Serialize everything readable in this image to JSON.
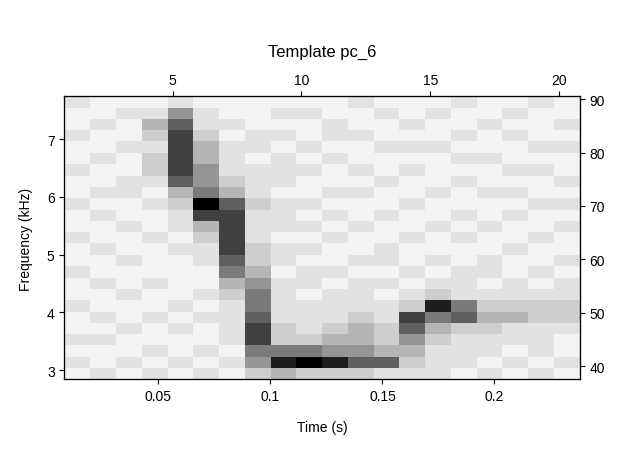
{
  "chart_data": {
    "type": "heatmap",
    "title": "Template pc_6",
    "x_label": "Time (s)",
    "y_label": "Frequency (kHz)",
    "x": [
      0.0138,
      0.0253,
      0.0368,
      0.0483,
      0.0598,
      0.0713,
      0.0828,
      0.0943,
      0.1058,
      0.1173,
      0.1288,
      0.1403,
      0.1518,
      0.1633,
      0.1748,
      0.1863,
      0.1978,
      0.2093,
      0.2208,
      0.2323
    ],
    "y": [
      2.94,
      3.13,
      3.33,
      3.53,
      3.72,
      3.92,
      4.11,
      4.31,
      4.51,
      4.7,
      4.9,
      5.1,
      5.29,
      5.49,
      5.68,
      5.88,
      6.08,
      6.27,
      6.47,
      6.66,
      6.86,
      7.06,
      7.25,
      7.45,
      7.64
    ],
    "z_by_x": [
      [
        1,
        2,
        1,
        2,
        1,
        1,
        2,
        1,
        1,
        2,
        1,
        1,
        2,
        1,
        1,
        2,
        1,
        1,
        2,
        1,
        1,
        2,
        1,
        1,
        2
      ],
      [
        2,
        1,
        1,
        2,
        1,
        2,
        1,
        1,
        2,
        1,
        1,
        2,
        1,
        1,
        2,
        1,
        2,
        1,
        1,
        2,
        1,
        1,
        2,
        1,
        1
      ],
      [
        1,
        2,
        1,
        1,
        2,
        1,
        1,
        2,
        1,
        1,
        2,
        1,
        1,
        2,
        1,
        1,
        2,
        2,
        1,
        1,
        2,
        1,
        1,
        2,
        1
      ],
      [
        2,
        1,
        2,
        1,
        1,
        2,
        1,
        1,
        2,
        1,
        1,
        1,
        2,
        1,
        1,
        2,
        1,
        2,
        3,
        3,
        2,
        3,
        4,
        2,
        1
      ],
      [
        1,
        2,
        1,
        1,
        2,
        1,
        2,
        1,
        1,
        1,
        1,
        2,
        1,
        2,
        2,
        3,
        4,
        7,
        8,
        8,
        8,
        8,
        7,
        5,
        2
      ],
      [
        2,
        1,
        2,
        1,
        1,
        2,
        1,
        2,
        1,
        1,
        2,
        2,
        3,
        4,
        8,
        10,
        6,
        5,
        5,
        4,
        4,
        3,
        2,
        2,
        1
      ],
      [
        1,
        2,
        1,
        2,
        2,
        2,
        2,
        3,
        4,
        6,
        7,
        8,
        8,
        8,
        8,
        7,
        4,
        3,
        2,
        2,
        2,
        1,
        2,
        1,
        1
      ],
      [
        3,
        5,
        6,
        8,
        8,
        7,
        6,
        6,
        5,
        4,
        3,
        3,
        2,
        2,
        2,
        3,
        2,
        2,
        2,
        1,
        2,
        2,
        1,
        1,
        1
      ],
      [
        4,
        9,
        6,
        3,
        3,
        2,
        2,
        2,
        2,
        1,
        2,
        2,
        1,
        2,
        2,
        2,
        1,
        2,
        2,
        2,
        1,
        2,
        1,
        2,
        1
      ],
      [
        3,
        10,
        6,
        3,
        2,
        2,
        2,
        1,
        2,
        2,
        1,
        2,
        1,
        2,
        1,
        2,
        1,
        1,
        2,
        1,
        2,
        1,
        1,
        2,
        1
      ],
      [
        3,
        9,
        5,
        4,
        3,
        2,
        2,
        2,
        1,
        2,
        1,
        1,
        2,
        1,
        2,
        1,
        2,
        1,
        1,
        2,
        1,
        2,
        2,
        1,
        1
      ],
      [
        3,
        7,
        5,
        4,
        4,
        3,
        2,
        2,
        2,
        1,
        2,
        1,
        1,
        2,
        1,
        1,
        2,
        1,
        2,
        1,
        1,
        2,
        1,
        1,
        2
      ],
      [
        2,
        7,
        4,
        3,
        3,
        2,
        2,
        1,
        2,
        1,
        2,
        2,
        1,
        1,
        2,
        1,
        1,
        2,
        1,
        1,
        2,
        1,
        1,
        2,
        1
      ],
      [
        2,
        3,
        4,
        5,
        7,
        8,
        3,
        2,
        1,
        2,
        1,
        1,
        2,
        1,
        1,
        2,
        1,
        1,
        2,
        1,
        2,
        1,
        2,
        1,
        1
      ],
      [
        2,
        2,
        2,
        3,
        4,
        6,
        9,
        3,
        2,
        1,
        2,
        1,
        1,
        2,
        1,
        1,
        2,
        1,
        1,
        1,
        2,
        1,
        1,
        2,
        1
      ],
      [
        1,
        2,
        2,
        2,
        3,
        7,
        6,
        2,
        2,
        2,
        1,
        1,
        2,
        1,
        2,
        1,
        1,
        2,
        1,
        2,
        1,
        2,
        1,
        1,
        2
      ],
      [
        2,
        1,
        2,
        2,
        3,
        4,
        3,
        2,
        1,
        2,
        2,
        1,
        1,
        2,
        1,
        1,
        2,
        1,
        1,
        2,
        1,
        1,
        2,
        1,
        1
      ],
      [
        1,
        2,
        1,
        2,
        2,
        4,
        3,
        2,
        2,
        1,
        1,
        2,
        1,
        1,
        2,
        1,
        2,
        1,
        2,
        1,
        1,
        2,
        1,
        2,
        1
      ],
      [
        2,
        1,
        2,
        2,
        2,
        3,
        3,
        2,
        1,
        2,
        1,
        1,
        2,
        1,
        1,
        2,
        1,
        1,
        2,
        1,
        2,
        1,
        1,
        1,
        2
      ],
      [
        1,
        2,
        1,
        1,
        2,
        3,
        3,
        2,
        2,
        1,
        2,
        1,
        1,
        2,
        1,
        2,
        1,
        2,
        1,
        1,
        2,
        1,
        2,
        1,
        1
      ]
    ],
    "zlim": [
      0,
      10
    ],
    "xlim": [
      0.008,
      0.238
    ],
    "xticks": [
      0.05,
      0.1,
      0.15,
      0.2
    ],
    "ylim": [
      2.84,
      7.74
    ],
    "yticks": [
      3,
      4,
      5,
      6,
      7
    ],
    "x2lim": [
      0.8,
      20.8
    ],
    "x2ticks": [
      5,
      10,
      15,
      20
    ],
    "y2lim": [
      37.5,
      90.5
    ],
    "y2ticks": [
      40,
      50,
      60,
      70,
      80,
      90
    ]
  }
}
